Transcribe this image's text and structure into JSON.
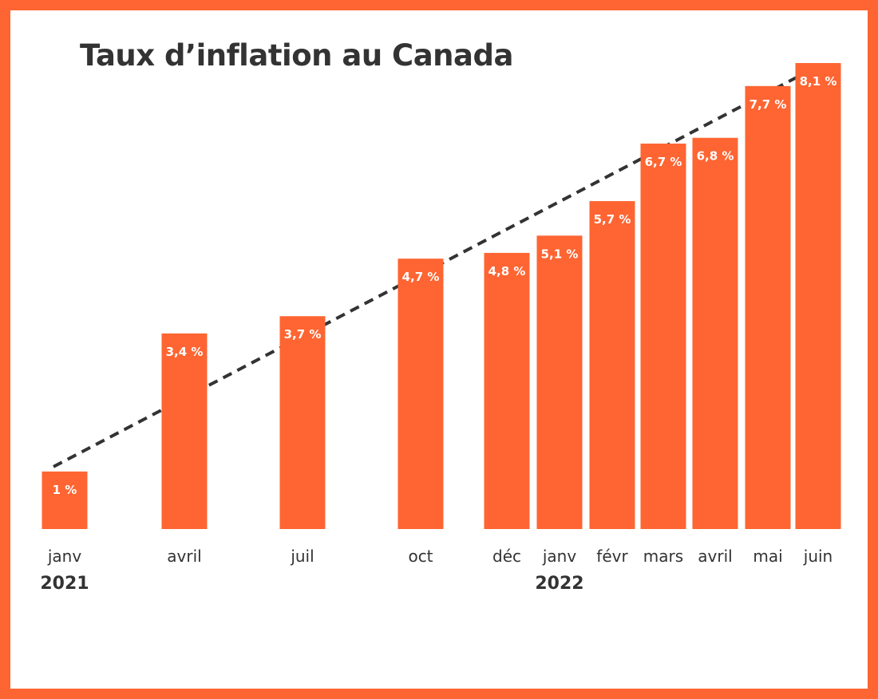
{
  "title": "Taux d’inflation au Canada",
  "colors": {
    "frame": "#fe6532",
    "bar": "#fe6532",
    "bar_label": "#ffffff",
    "text": "#333333",
    "trend": "#333333"
  },
  "chart_data": {
    "type": "bar",
    "title": "Taux d’inflation au Canada",
    "xlabel": "",
    "ylabel": "",
    "categories": [
      "janv",
      "avril",
      "juil",
      "oct",
      "déc",
      "janv",
      "févr",
      "mars",
      "avril",
      "mai",
      "juin"
    ],
    "years": [
      {
        "label": "2021",
        "under": 0
      },
      {
        "label": "2022",
        "under": 5
      }
    ],
    "values": [
      1,
      3.4,
      3.7,
      4.7,
      4.8,
      5.1,
      5.7,
      6.7,
      6.8,
      7.7,
      8.1
    ],
    "value_labels": [
      "1 %",
      "3,4 %",
      "3,7 %",
      "4,7 %",
      "4,8 %",
      "5,1 %",
      "5,7 %",
      "6,7 %",
      "6,8 %",
      "7,7 %",
      "8,1 %"
    ],
    "trend_line": {
      "style": "dashed",
      "from_index": 0,
      "to_index": 10
    },
    "ylim": [
      0,
      8.1
    ],
    "grid": false,
    "legend": "none"
  }
}
